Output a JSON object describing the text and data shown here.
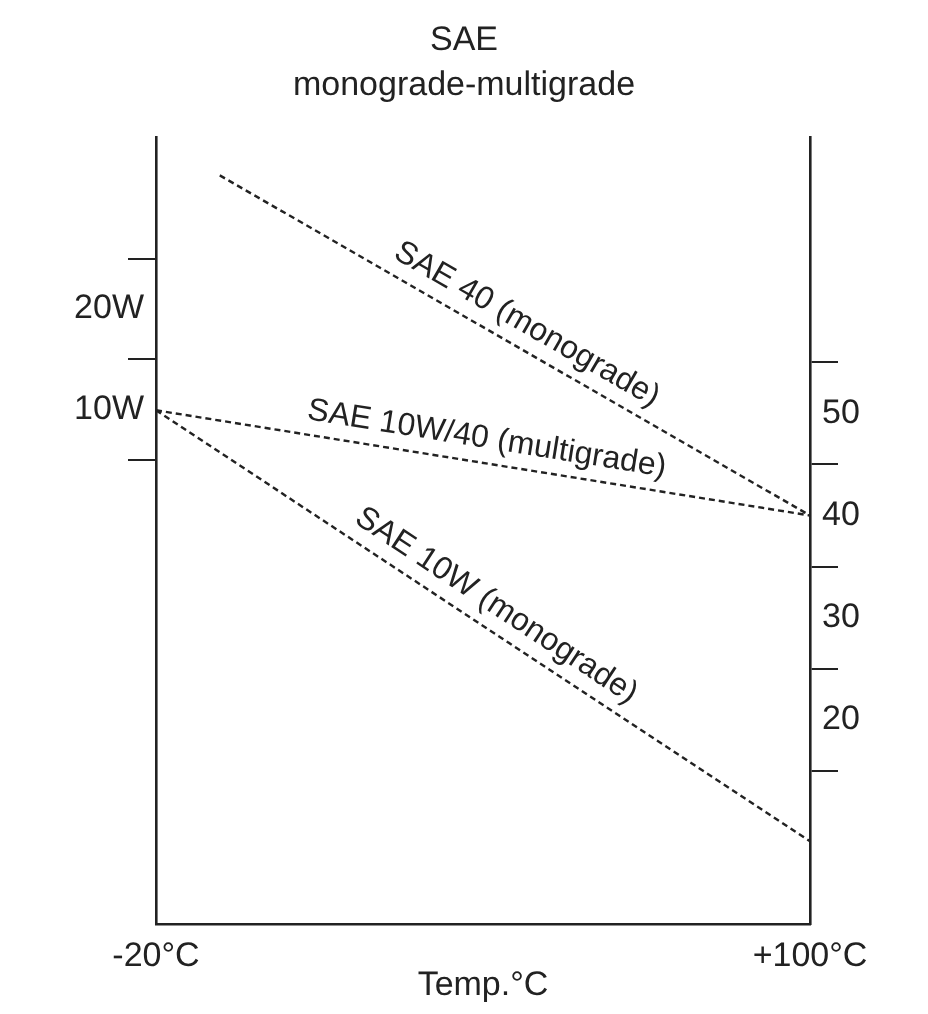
{
  "chart_data": {
    "type": "line",
    "title": "SAE",
    "subtitle": "monograde-multigrade",
    "xlabel": "Temp.°C",
    "xlim": [
      -20,
      100
    ],
    "xticks": [
      {
        "value": -20,
        "label": "-20°C"
      },
      {
        "value": 100,
        "label": "+100°C"
      }
    ],
    "ylim": [
      -41,
      37
    ],
    "yticks": [
      {
        "value": 5,
        "label": null
      },
      {
        "value": 10,
        "label": "10W"
      },
      {
        "value": 15,
        "label": null
      },
      {
        "value": 20,
        "label": "20W"
      },
      {
        "value": 25,
        "label": null
      }
    ],
    "y2lim": [
      0,
      77
    ],
    "y2ticks": [
      {
        "value": 15,
        "label": null
      },
      20,
      {
        "value": 25,
        "label": null
      },
      30,
      {
        "value": 35,
        "label": null
      },
      40,
      {
        "value": 45,
        "label": null
      },
      50,
      {
        "value": 55,
        "label": null
      }
    ],
    "series": [
      {
        "name": "SAE 40 (monograde)",
        "color": "#222222",
        "axis": "y2",
        "x": [
          -8.3,
          100
        ],
        "values": [
          73.3,
          40
        ]
      },
      {
        "name": "SAE 10W/40 (multigrade)",
        "color": "#222222",
        "axis": "y2",
        "x": [
          -20,
          100
        ],
        "values": [
          50.3,
          40
        ]
      },
      {
        "name": "SAE 10W (monograde)",
        "color": "#222222",
        "axis": "y2",
        "x": [
          -20,
          100
        ],
        "values": [
          50.3,
          8.1
        ]
      }
    ],
    "grid": false,
    "legend": false,
    "marker": "none",
    "line_style": "dashed"
  }
}
